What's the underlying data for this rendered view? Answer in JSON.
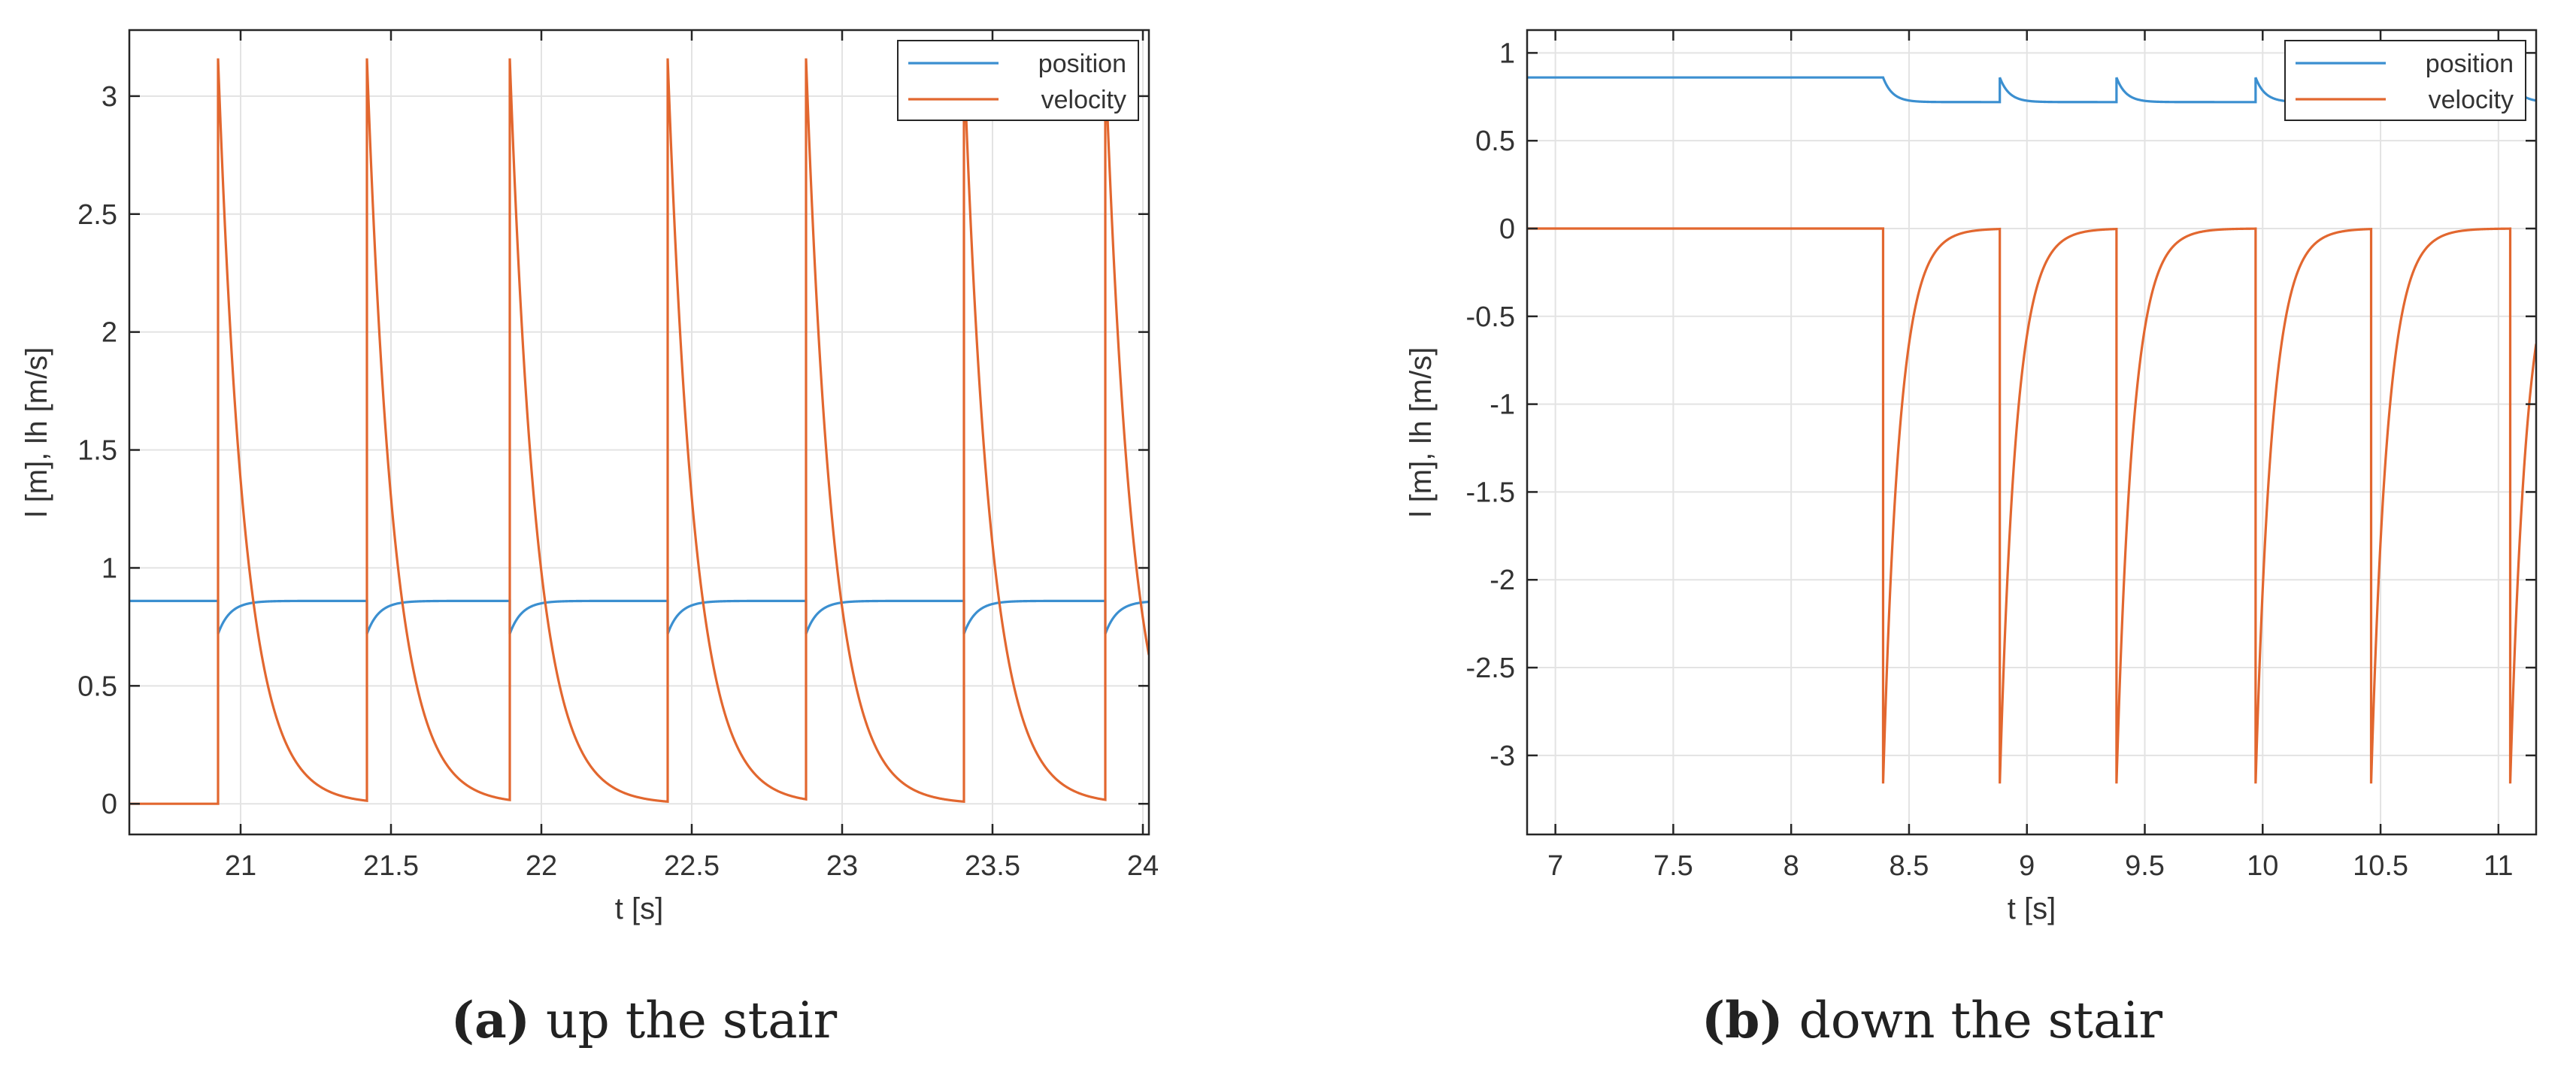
{
  "colors": {
    "position": "#3B8FD0",
    "velocity": "#E2672F",
    "grid": "#e3e3e3",
    "axis": "#262626"
  },
  "chart_data": [
    {
      "type": "line",
      "caption_label": "(a)",
      "caption_text": "up the stair",
      "xlabel": "t [s]",
      "ylabel": "l [m], lh [m/s]",
      "xlim": [
        20.63,
        24.02
      ],
      "ylim": [
        -0.13,
        3.28
      ],
      "xticks": [
        21,
        21.5,
        22,
        22.5,
        23,
        23.5,
        24
      ],
      "xtick_labels": [
        "21",
        "21.5",
        "22",
        "22.5",
        "23",
        "23.5",
        "24"
      ],
      "yticks": [
        0,
        0.5,
        1,
        1.5,
        2,
        2.5,
        3
      ],
      "ytick_labels": [
        "0",
        "0.5",
        "1",
        "1.5",
        "2",
        "2.5",
        "3"
      ],
      "grid": true,
      "legend": "top-right",
      "step_times": [
        20.925,
        21.42,
        21.895,
        22.42,
        22.88,
        23.405,
        23.875
      ],
      "series": [
        {
          "name": "position",
          "baseline": 0.86,
          "event_value": 0.72,
          "tau": 0.04,
          "sign": -1
        },
        {
          "name": "velocity",
          "baseline": 0,
          "peak": 3.16,
          "tau": 0.09,
          "sign": 1
        }
      ]
    },
    {
      "type": "line",
      "caption_label": "(b)",
      "caption_text": "down the stair",
      "xlabel": "t [s]",
      "ylabel": "l [m], lh [m/s]",
      "xlim": [
        6.88,
        11.16
      ],
      "ylim": [
        -3.45,
        1.13
      ],
      "xticks": [
        7,
        7.5,
        8,
        8.5,
        9,
        9.5,
        10,
        10.5,
        11
      ],
      "xtick_labels": [
        "7",
        "7.5",
        "8",
        "8.5",
        "9",
        "9.5",
        "10",
        "10.5",
        "11"
      ],
      "yticks": [
        1,
        0.5,
        0,
        -0.5,
        -1,
        -1.5,
        -2,
        -2.5,
        -3
      ],
      "ytick_labels": [
        "1",
        "0.5",
        "0",
        "-0.5",
        "-1",
        "-1.5",
        "-2",
        "-2.5",
        "-3"
      ],
      "grid": true,
      "legend": "top-right",
      "step_times": [
        8.39,
        8.885,
        9.38,
        9.97,
        10.46,
        11.05
      ],
      "series": [
        {
          "name": "position",
          "initial": 0.86,
          "baseline": 0.72,
          "event_value": 0.86,
          "tau": 0.04,
          "sign": 1
        },
        {
          "name": "velocity",
          "baseline": 0,
          "peak": -3.16,
          "tau": 0.07,
          "sign": -1
        }
      ]
    }
  ]
}
